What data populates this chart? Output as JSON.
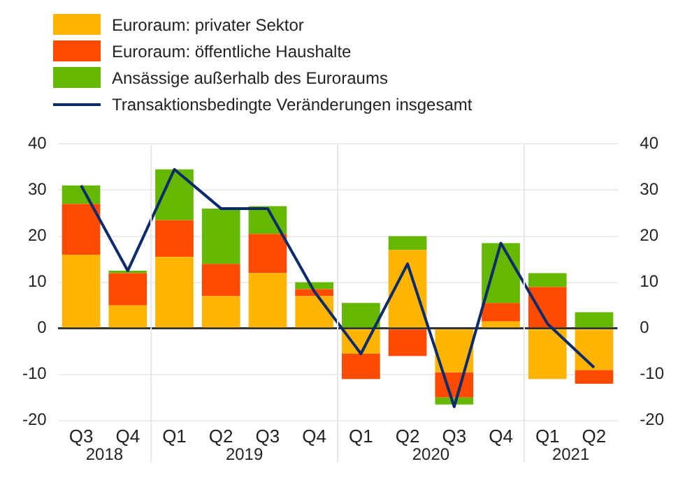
{
  "chart_data": {
    "type": "bar",
    "stacked": true,
    "categories": [
      "Q3",
      "Q4",
      "Q1",
      "Q2",
      "Q3",
      "Q4",
      "Q1",
      "Q2",
      "Q3",
      "Q4",
      "Q1",
      "Q2"
    ],
    "series": [
      {
        "name": "Euroraum: privater Sektor",
        "color": "#ffb400",
        "values": [
          16,
          5,
          15.5,
          7,
          12,
          7,
          -5.5,
          17,
          -9.5,
          1.5,
          -11,
          -9
        ]
      },
      {
        "name": "Euroraum: öffentliche Haushalte",
        "color": "#ff4b00",
        "values": [
          11,
          7,
          8,
          7,
          8.5,
          1.5,
          -5.5,
          -6,
          -5.5,
          4,
          9,
          -3
        ]
      },
      {
        "name": "Ansässige außerhalb des Euroraums",
        "color": "#65b800",
        "values": [
          4,
          0.5,
          11,
          12,
          6,
          1.5,
          5.5,
          3,
          -1.5,
          13,
          3,
          3.5
        ]
      },
      {
        "name": "Transaktionsbedingte Veränderungen insgesamt",
        "type": "line",
        "color": "#0d2a6b",
        "values": [
          31,
          12.5,
          34.5,
          26,
          26,
          8,
          -5.5,
          14,
          -17,
          18.5,
          1,
          -8.5
        ]
      }
    ],
    "ylim": [
      -20,
      40
    ],
    "yticks": [
      -20,
      -10,
      0,
      10,
      20,
      30,
      40
    ],
    "y2lim": [
      -20,
      40
    ],
    "y2ticks": [
      -20,
      -10,
      0,
      10,
      20,
      30,
      40
    ],
    "annotations": [
      "2018",
      "2019",
      "2020",
      "2021"
    ],
    "grid": "y",
    "legend": "top left",
    "marker": "none"
  }
}
